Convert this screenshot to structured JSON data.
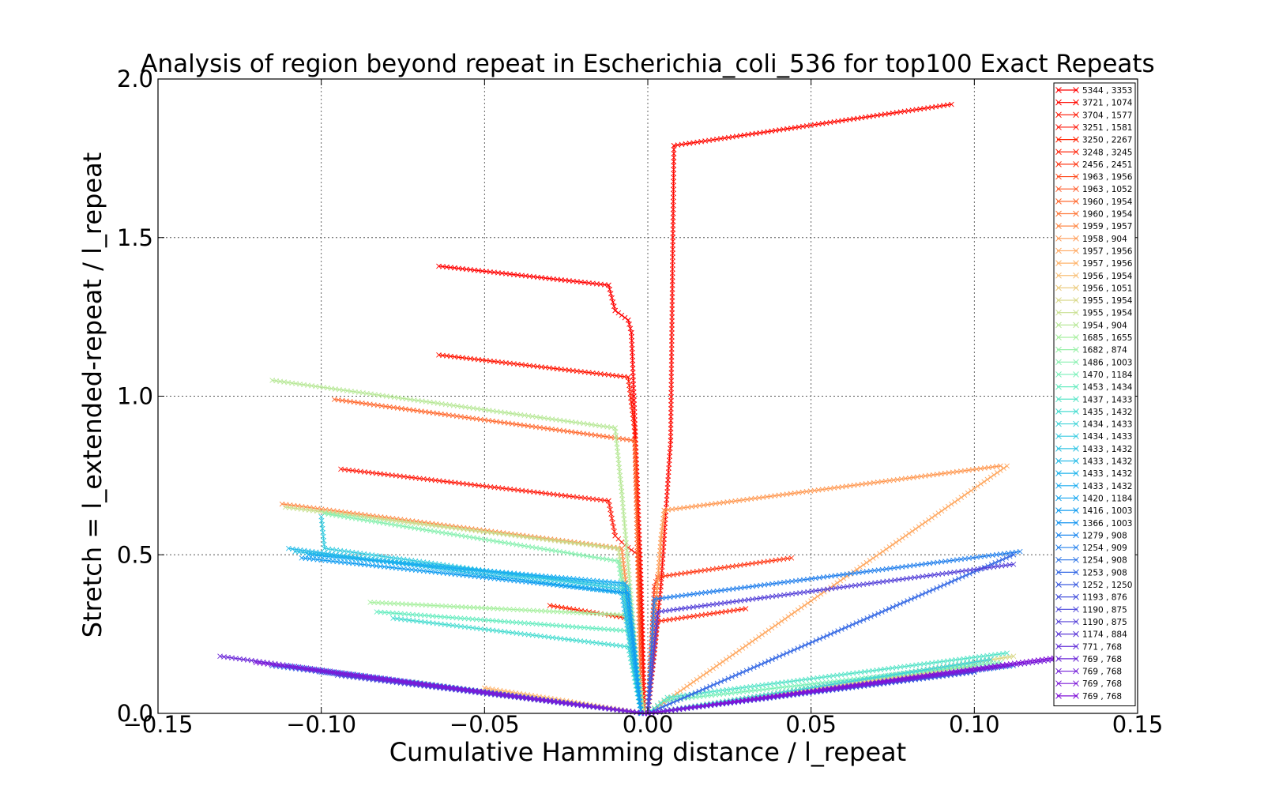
{
  "chart_data": {
    "type": "line",
    "title": "Analysis of region beyond repeat in Escherichia_coli_536 for top100 Exact Repeats",
    "xlabel": "Cumulative Hamming distance / l_repeat",
    "ylabel": "Stretch =  l_extended-repeat / l_repeat",
    "xlim": [
      -0.15,
      0.15
    ],
    "ylim": [
      0.0,
      2.0
    ],
    "grid": true,
    "legend_position": "right-inside",
    "xticks": [
      -0.15,
      -0.1,
      -0.05,
      0.0,
      0.05,
      0.1,
      0.15
    ],
    "xtick_labels": [
      "−0.15",
      "−0.10",
      "−0.05",
      "0.00",
      "0.05",
      "0.10",
      "0.15"
    ],
    "yticks": [
      0.0,
      0.5,
      1.0,
      1.5,
      2.0
    ],
    "ytick_labels": [
      "0.0",
      "0.5",
      "1.0",
      "1.5",
      "2.0"
    ],
    "marker": "x",
    "series": [
      {
        "name": "5344 , 3353",
        "color": "#ff0000",
        "points": [
          [
            -0.064,
            1.41
          ],
          [
            -0.012,
            1.35
          ],
          [
            -0.01,
            1.27
          ],
          [
            -0.006,
            1.24
          ],
          [
            -0.005,
            1.2
          ],
          [
            -0.002,
            0.4
          ],
          [
            -0.001,
            0.0
          ]
        ]
      },
      {
        "name": "3721 , 1074",
        "color": "#ff0800",
        "points": [
          [
            0.0,
            0.0
          ],
          [
            0.004,
            0.4
          ],
          [
            0.007,
            0.86
          ],
          [
            0.008,
            1.79
          ],
          [
            0.093,
            1.92
          ]
        ]
      },
      {
        "name": "3704 , 1577",
        "color": "#ff1400",
        "points": [
          [
            -0.064,
            1.13
          ],
          [
            -0.006,
            1.06
          ],
          [
            -0.004,
            0.89
          ],
          [
            -0.001,
            0.0
          ]
        ]
      },
      {
        "name": "3251 , 1581",
        "color": "#ff1c0e",
        "points": [
          [
            -0.094,
            0.77
          ],
          [
            -0.012,
            0.67
          ],
          [
            -0.01,
            0.56
          ],
          [
            -0.007,
            0.53
          ],
          [
            -0.003,
            0.5
          ],
          [
            -0.001,
            0.0
          ]
        ]
      },
      {
        "name": "3250 , 2267",
        "color": "#ff2000",
        "points": [
          [
            -0.03,
            0.34
          ],
          [
            -0.006,
            0.3
          ],
          [
            -0.004,
            0.19
          ],
          [
            -0.001,
            0.0
          ]
        ]
      },
      {
        "name": "3248 , 3245",
        "color": "#ff2a10",
        "points": [
          [
            0.0,
            0.0
          ],
          [
            0.002,
            0.19
          ],
          [
            0.003,
            0.29
          ],
          [
            0.03,
            0.33
          ]
        ]
      },
      {
        "name": "2456 , 2451",
        "color": "#ff3a18",
        "points": [
          [
            0.0,
            0.0
          ],
          [
            0.002,
            0.4
          ],
          [
            0.003,
            0.43
          ],
          [
            0.044,
            0.49
          ]
        ]
      },
      {
        "name": "1963 , 1956",
        "color": "#ff4a1c",
        "points": [
          [
            -0.052,
            0.07
          ],
          [
            -0.001,
            0.0
          ]
        ]
      },
      {
        "name": "1963 , 1052",
        "color": "#ff5a28",
        "points": [
          [
            0.0,
            0.0
          ],
          [
            0.064,
            0.09
          ]
        ]
      },
      {
        "name": "1960 , 1954",
        "color": "#ff6a30",
        "points": [
          [
            -0.096,
            0.99
          ],
          [
            -0.004,
            0.86
          ],
          [
            -0.002,
            0.0
          ]
        ]
      },
      {
        "name": "1960 , 1954",
        "color": "#ff7a3c",
        "points": [
          [
            0.0,
            0.0
          ],
          [
            0.07,
            0.1
          ]
        ]
      },
      {
        "name": "1959 , 1957",
        "color": "#ff8a48",
        "points": [
          [
            -0.112,
            0.66
          ],
          [
            -0.008,
            0.52
          ],
          [
            -0.002,
            0.0
          ]
        ]
      },
      {
        "name": "1958 , 904",
        "color": "#ff9a54",
        "points": [
          [
            0.0,
            0.0
          ],
          [
            0.004,
            0.55
          ],
          [
            0.005,
            0.64
          ],
          [
            0.108,
            0.78
          ]
        ]
      },
      {
        "name": "1957 , 1956",
        "color": "#ffa860",
        "points": [
          [
            0.0,
            0.0
          ],
          [
            0.11,
            0.78
          ]
        ]
      },
      {
        "name": "1957 , 1956",
        "color": "#ffb46c",
        "points": [
          [
            -0.05,
            0.08
          ],
          [
            -0.001,
            0.0
          ]
        ]
      },
      {
        "name": "1956 , 1954",
        "color": "#f8c078",
        "points": [
          [
            0.0,
            0.0
          ],
          [
            0.09,
            0.13
          ]
        ]
      },
      {
        "name": "1956 , 1051",
        "color": "#eccc80",
        "points": [
          [
            0.0,
            0.0
          ],
          [
            0.1,
            0.15
          ]
        ]
      },
      {
        "name": "1955 , 1954",
        "color": "#d8d888",
        "points": [
          [
            0.0,
            0.0
          ],
          [
            0.112,
            0.18
          ]
        ]
      },
      {
        "name": "1955 , 1954",
        "color": "#c8e090",
        "points": [
          [
            -0.111,
            0.65
          ],
          [
            -0.009,
            0.52
          ],
          [
            -0.002,
            0.0
          ]
        ]
      },
      {
        "name": "1954 , 904",
        "color": "#b8e898",
        "points": [
          [
            -0.115,
            1.05
          ],
          [
            -0.01,
            0.9
          ],
          [
            -0.008,
            0.7
          ],
          [
            -0.002,
            0.0
          ]
        ]
      },
      {
        "name": "1685 , 1655",
        "color": "#a8f0a0",
        "points": [
          [
            -0.085,
            0.35
          ],
          [
            -0.007,
            0.31
          ],
          [
            -0.004,
            0.2
          ],
          [
            -0.001,
            0.0
          ]
        ]
      },
      {
        "name": "1682 , 874",
        "color": "#98f0a8",
        "points": [
          [
            -0.072,
            0.1
          ],
          [
            -0.001,
            0.0
          ]
        ]
      },
      {
        "name": "1486 , 1003",
        "color": "#88f0b0",
        "points": [
          [
            -0.099,
            0.63
          ],
          [
            -0.009,
            0.48
          ],
          [
            -0.002,
            0.0
          ]
        ]
      },
      {
        "name": "1470 , 1184",
        "color": "#78f0b8",
        "points": [
          [
            0.0,
            0.0
          ],
          [
            0.005,
            0.04
          ],
          [
            0.108,
            0.16
          ]
        ]
      },
      {
        "name": "1453 , 1434",
        "color": "#68ecc0",
        "points": [
          [
            -0.083,
            0.32
          ],
          [
            -0.006,
            0.26
          ],
          [
            -0.002,
            0.0
          ]
        ]
      },
      {
        "name": "1437 , 1433",
        "color": "#58e4c8",
        "points": [
          [
            0.0,
            0.0
          ],
          [
            0.006,
            0.05
          ],
          [
            0.11,
            0.19
          ]
        ]
      },
      {
        "name": "1435 , 1432",
        "color": "#48dcd0",
        "points": [
          [
            -0.078,
            0.3
          ],
          [
            -0.006,
            0.21
          ],
          [
            -0.002,
            0.0
          ]
        ]
      },
      {
        "name": "1434 , 1433",
        "color": "#40d4d8",
        "points": [
          [
            0.0,
            0.0
          ],
          [
            0.105,
            0.17
          ]
        ]
      },
      {
        "name": "1434 , 1433",
        "color": "#38cce0",
        "points": [
          [
            -0.1,
            0.62
          ],
          [
            -0.099,
            0.52
          ],
          [
            -0.007,
            0.39
          ],
          [
            -0.002,
            0.0
          ]
        ]
      },
      {
        "name": "1433 , 1432",
        "color": "#30c4e4",
        "points": [
          [
            -0.108,
            0.51
          ],
          [
            -0.006,
            0.4
          ],
          [
            -0.002,
            0.0
          ]
        ]
      },
      {
        "name": "1433 , 1432",
        "color": "#28bce8",
        "points": [
          [
            -0.11,
            0.52
          ],
          [
            -0.008,
            0.38
          ],
          [
            -0.002,
            0.0
          ]
        ]
      },
      {
        "name": "1433 , 1432",
        "color": "#20b4ec",
        "points": [
          [
            0.0,
            0.0
          ],
          [
            0.112,
            0.15
          ]
        ]
      },
      {
        "name": "1433 , 1432",
        "color": "#18acf0",
        "points": [
          [
            -0.104,
            0.5
          ],
          [
            -0.007,
            0.41
          ],
          [
            -0.002,
            0.0
          ]
        ]
      },
      {
        "name": "1420 , 1184",
        "color": "#10a4f0",
        "points": [
          [
            0.0,
            0.0
          ],
          [
            0.1,
            0.13
          ]
        ]
      },
      {
        "name": "1416 , 1003",
        "color": "#109cf0",
        "points": [
          [
            -0.106,
            0.49
          ],
          [
            -0.006,
            0.38
          ],
          [
            -0.002,
            0.0
          ]
        ]
      },
      {
        "name": "1366 , 1003",
        "color": "#1494f0",
        "points": [
          [
            0.0,
            0.0
          ],
          [
            0.09,
            0.12
          ]
        ]
      },
      {
        "name": "1279 , 908",
        "color": "#1c88f0",
        "points": [
          [
            -0.11,
            0.15
          ],
          [
            -0.001,
            0.0
          ]
        ]
      },
      {
        "name": "1254 , 909",
        "color": "#2480ec",
        "points": [
          [
            0.0,
            0.0
          ],
          [
            0.002,
            0.36
          ],
          [
            0.114,
            0.51
          ]
        ]
      },
      {
        "name": "1254 , 908",
        "color": "#2c74e8",
        "points": [
          [
            -0.115,
            0.15
          ],
          [
            -0.001,
            0.0
          ]
        ]
      },
      {
        "name": "1253 , 908",
        "color": "#3468e4",
        "points": [
          [
            0.0,
            0.0
          ],
          [
            0.112,
            0.5
          ]
        ]
      },
      {
        "name": "1252 , 1250",
        "color": "#3c5ce0",
        "points": [
          [
            -0.1,
            0.13
          ],
          [
            -0.001,
            0.0
          ]
        ]
      },
      {
        "name": "1193 , 876",
        "color": "#4450dc",
        "points": [
          [
            0.0,
            0.0
          ],
          [
            0.1,
            0.13
          ]
        ]
      },
      {
        "name": "1190 , 875",
        "color": "#4c48dc",
        "points": [
          [
            -0.095,
            0.12
          ],
          [
            -0.001,
            0.0
          ]
        ]
      },
      {
        "name": "1190 , 875",
        "color": "#5440d8",
        "points": [
          [
            0.0,
            0.0
          ],
          [
            0.003,
            0.32
          ],
          [
            0.112,
            0.47
          ]
        ]
      },
      {
        "name": "1174 , 884",
        "color": "#5c38d8",
        "points": [
          [
            -0.105,
            0.14
          ],
          [
            -0.001,
            0.0
          ]
        ]
      },
      {
        "name": "771 , 768",
        "color": "#6430d8",
        "points": [
          [
            0.0,
            0.0
          ],
          [
            0.11,
            0.15
          ]
        ]
      },
      {
        "name": "769 , 768",
        "color": "#6c28d8",
        "points": [
          [
            -0.131,
            0.18
          ],
          [
            -0.001,
            0.0
          ]
        ]
      },
      {
        "name": "769 , 768",
        "color": "#7420d8",
        "points": [
          [
            0.0,
            0.0
          ],
          [
            0.125,
            0.17
          ]
        ]
      },
      {
        "name": "769 , 768",
        "color": "#7c18d8",
        "points": [
          [
            -0.12,
            0.16
          ],
          [
            -0.001,
            0.0
          ]
        ]
      },
      {
        "name": "769 , 768",
        "color": "#8010d8",
        "points": [
          [
            0.0,
            0.0
          ],
          [
            0.128,
            0.18
          ]
        ]
      }
    ]
  }
}
